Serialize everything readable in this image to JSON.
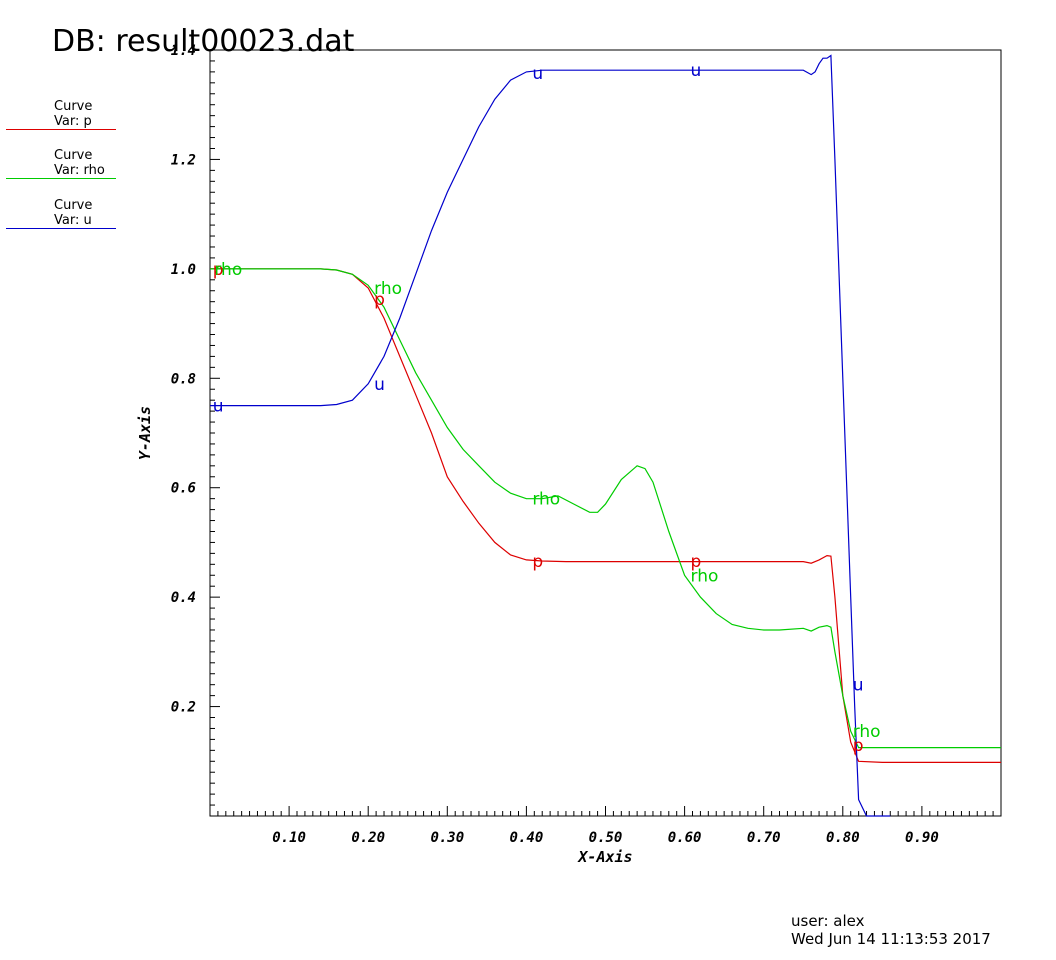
{
  "header": {
    "title": "DB: result00023.dat"
  },
  "legend": [
    {
      "line1": "Curve",
      "line2": "Var: p",
      "color": "#dd0000"
    },
    {
      "line1": "Curve",
      "line2": "Var: rho",
      "color": "#00cc00"
    },
    {
      "line1": "Curve",
      "line2": "Var: u",
      "color": "#0000cc"
    }
  ],
  "footer": {
    "user": "user: alex",
    "timestamp": "Wed Jun 14 11:13:53 2017"
  },
  "chart_data": {
    "type": "line",
    "xlabel": "X-Axis",
    "ylabel": "Y-Axis",
    "xlim": [
      0.0,
      1.0
    ],
    "ylim": [
      0.0,
      1.4
    ],
    "xticks": [
      "0.10",
      "0.20",
      "0.30",
      "0.40",
      "0.50",
      "0.60",
      "0.70",
      "0.80",
      "0.90"
    ],
    "yticks": [
      "0.2",
      "0.4",
      "0.6",
      "0.8",
      "1.0",
      "1.2",
      "1.4"
    ],
    "grid": false,
    "series": [
      {
        "name": "p",
        "color": "#dd0000",
        "x": [
          0.0,
          0.1,
          0.14,
          0.16,
          0.18,
          0.2,
          0.22,
          0.24,
          0.26,
          0.28,
          0.3,
          0.32,
          0.34,
          0.36,
          0.38,
          0.4,
          0.42,
          0.45,
          0.5,
          0.55,
          0.6,
          0.65,
          0.7,
          0.75,
          0.76,
          0.77,
          0.78,
          0.785,
          0.79,
          0.8,
          0.81,
          0.82,
          0.85,
          0.9,
          0.95,
          1.0
        ],
        "y": [
          1.0,
          1.0,
          1.0,
          0.998,
          0.99,
          0.965,
          0.91,
          0.84,
          0.77,
          0.7,
          0.62,
          0.575,
          0.535,
          0.5,
          0.477,
          0.468,
          0.466,
          0.465,
          0.465,
          0.465,
          0.465,
          0.465,
          0.465,
          0.465,
          0.462,
          0.468,
          0.476,
          0.475,
          0.4,
          0.22,
          0.135,
          0.1,
          0.098,
          0.098,
          0.098,
          0.098
        ]
      },
      {
        "name": "rho",
        "color": "#00cc00",
        "x": [
          0.0,
          0.1,
          0.14,
          0.16,
          0.18,
          0.2,
          0.22,
          0.24,
          0.26,
          0.28,
          0.3,
          0.32,
          0.34,
          0.36,
          0.38,
          0.4,
          0.42,
          0.44,
          0.46,
          0.48,
          0.49,
          0.5,
          0.52,
          0.54,
          0.55,
          0.56,
          0.58,
          0.6,
          0.62,
          0.64,
          0.66,
          0.68,
          0.7,
          0.72,
          0.75,
          0.76,
          0.77,
          0.78,
          0.785,
          0.79,
          0.8,
          0.81,
          0.82,
          0.85,
          0.9,
          0.95,
          1.0
        ],
        "y": [
          1.0,
          1.0,
          1.0,
          0.998,
          0.99,
          0.97,
          0.93,
          0.87,
          0.81,
          0.76,
          0.71,
          0.67,
          0.64,
          0.61,
          0.59,
          0.58,
          0.58,
          0.585,
          0.57,
          0.555,
          0.555,
          0.57,
          0.615,
          0.64,
          0.635,
          0.61,
          0.52,
          0.44,
          0.4,
          0.37,
          0.35,
          0.343,
          0.34,
          0.34,
          0.343,
          0.338,
          0.345,
          0.348,
          0.345,
          0.3,
          0.22,
          0.155,
          0.125,
          0.125,
          0.125,
          0.125,
          0.125
        ]
      },
      {
        "name": "u",
        "color": "#0000cc",
        "x": [
          0.0,
          0.1,
          0.14,
          0.16,
          0.18,
          0.2,
          0.22,
          0.24,
          0.26,
          0.28,
          0.3,
          0.31,
          0.32,
          0.34,
          0.36,
          0.38,
          0.4,
          0.42,
          0.45,
          0.5,
          0.55,
          0.6,
          0.65,
          0.7,
          0.75,
          0.76,
          0.765,
          0.77,
          0.775,
          0.78,
          0.785,
          0.79,
          0.8,
          0.81,
          0.815,
          0.82,
          0.83,
          0.85,
          0.86
        ],
        "y": [
          0.75,
          0.75,
          0.75,
          0.752,
          0.76,
          0.79,
          0.84,
          0.91,
          0.99,
          1.07,
          1.14,
          1.17,
          1.2,
          1.26,
          1.31,
          1.345,
          1.36,
          1.363,
          1.363,
          1.363,
          1.363,
          1.363,
          1.363,
          1.363,
          1.363,
          1.355,
          1.36,
          1.375,
          1.385,
          1.385,
          1.39,
          1.2,
          0.8,
          0.4,
          0.2,
          0.03,
          0.0,
          0.0,
          0.0
        ]
      }
    ],
    "annotations": [
      {
        "text": "p",
        "series": "p",
        "x": 0.001,
        "y": 1.0
      },
      {
        "text": "rho",
        "series": "rho",
        "x": 0.003,
        "y": 1.0
      },
      {
        "text": "u",
        "series": "u",
        "x": 0.001,
        "y": 0.75
      },
      {
        "text": "rho",
        "series": "rho",
        "x": 0.205,
        "y": 0.965
      },
      {
        "text": "p",
        "series": "p",
        "x": 0.205,
        "y": 0.945
      },
      {
        "text": "u",
        "series": "u",
        "x": 0.205,
        "y": 0.79
      },
      {
        "text": "u",
        "series": "u",
        "x": 0.405,
        "y": 1.358
      },
      {
        "text": "rho",
        "series": "rho",
        "x": 0.405,
        "y": 0.58
      },
      {
        "text": "p",
        "series": "p",
        "x": 0.405,
        "y": 0.466
      },
      {
        "text": "u",
        "series": "u",
        "x": 0.605,
        "y": 1.363
      },
      {
        "text": "p",
        "series": "p",
        "x": 0.605,
        "y": 0.466
      },
      {
        "text": "rho",
        "series": "rho",
        "x": 0.605,
        "y": 0.44
      },
      {
        "text": "u",
        "series": "u",
        "x": 0.81,
        "y": 0.24
      },
      {
        "text": "rho",
        "series": "rho",
        "x": 0.81,
        "y": 0.155
      },
      {
        "text": "p",
        "series": "p",
        "x": 0.81,
        "y": 0.13
      }
    ]
  }
}
